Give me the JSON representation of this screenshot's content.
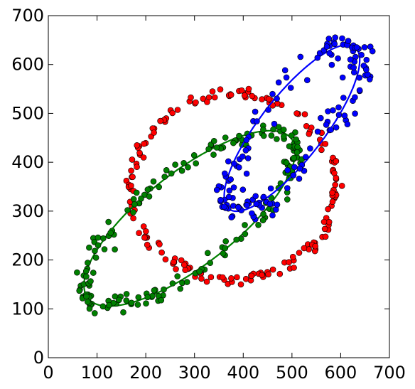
{
  "chart_data": {
    "type": "scatter",
    "title": "",
    "xlabel": "",
    "ylabel": "",
    "xlim": [
      0,
      700
    ],
    "ylim": [
      0,
      700
    ],
    "xticks": [
      0,
      100,
      200,
      300,
      400,
      500,
      600,
      700
    ],
    "yticks": [
      0,
      100,
      200,
      300,
      400,
      500,
      600,
      700
    ],
    "grid": false,
    "legend": "none",
    "series": [
      {
        "color": "#ff0000",
        "marker": "circle",
        "ellipse": {
          "cx": 380,
          "cy": 350,
          "a": 210,
          "b": 190,
          "angle": 0,
          "n": 180
        },
        "noise": 6
      },
      {
        "color": "#008000",
        "marker": "circle",
        "ellipse": {
          "cx": 290,
          "cy": 285,
          "a": 265,
          "b": 95,
          "angle": 38,
          "n": 190
        },
        "noise": 9,
        "fit_line": true
      },
      {
        "color": "#0000ff",
        "marker": "circle",
        "ellipse": {
          "cx": 500,
          "cy": 470,
          "a": 210,
          "b": 65,
          "angle": 52,
          "n": 150
        },
        "noise": 15,
        "fit_line": true
      }
    ]
  }
}
